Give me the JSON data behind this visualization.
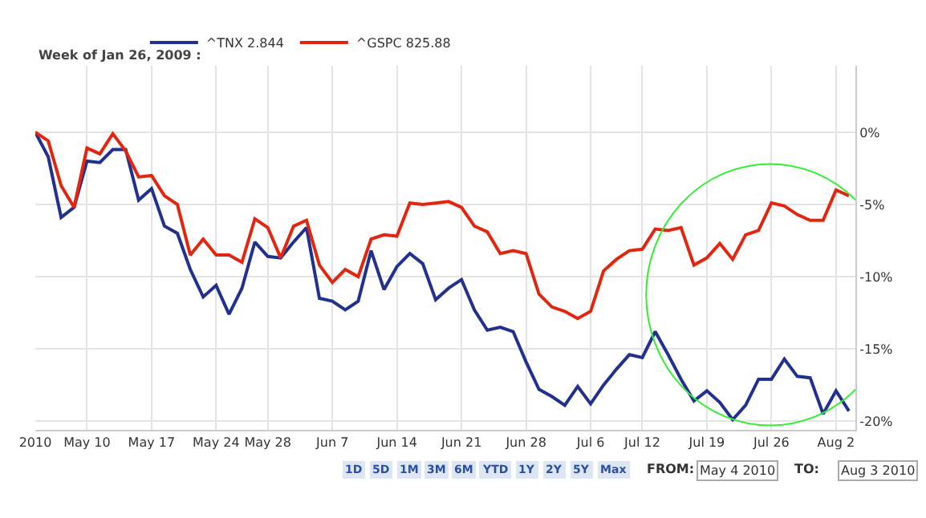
{
  "chart_data": {
    "type": "line",
    "categories": [
      "2010",
      null,
      null,
      null,
      "May 10",
      null,
      null,
      null,
      null,
      "May 17",
      null,
      null,
      null,
      null,
      "May 24",
      null,
      null,
      null,
      "May 28",
      null,
      null,
      null,
      null,
      "Jun 7",
      null,
      null,
      null,
      null,
      "Jun 14",
      null,
      null,
      null,
      null,
      "Jun 21",
      null,
      null,
      null,
      null,
      "Jun 28",
      null,
      null,
      null,
      null,
      "Jul 6",
      null,
      null,
      null,
      "Jul 12",
      null,
      null,
      null,
      null,
      "Jul 19",
      null,
      null,
      null,
      null,
      "Jul 26",
      null,
      null,
      null,
      null,
      "Aug 2",
      null
    ],
    "series": [
      {
        "name": "^TNX 2.844",
        "color": "#22318f",
        "values": [
          0,
          -1.7,
          -5.9,
          -5.2,
          -2.0,
          -2.1,
          -1.2,
          -1.2,
          -4.7,
          -3.9,
          -6.5,
          -7.0,
          -9.5,
          -11.4,
          -10.6,
          -12.6,
          -10.8,
          -7.6,
          -8.6,
          -8.7,
          -7.6,
          -6.6,
          -11.5,
          -11.7,
          -12.3,
          -11.7,
          -8.2,
          -10.9,
          -9.3,
          -8.4,
          -9.1,
          -11.6,
          -10.8,
          -10.2,
          -12.3,
          -13.7,
          -13.5,
          -13.8,
          -15.9,
          -17.8,
          -18.3,
          -18.9,
          -17.6,
          -18.8,
          -17.5,
          -16.4,
          -15.4,
          -15.6,
          -13.8,
          -15.4,
          -17.1,
          -18.6,
          -17.9,
          -18.7,
          -19.9,
          -18.9,
          -17.1,
          -17.1,
          -15.7,
          -16.9,
          -17.0,
          -19.5,
          -17.9,
          -19.3
        ]
      },
      {
        "name": "^GSPC 825.88",
        "color": "#e3260f",
        "values": [
          0,
          -0.6,
          -3.7,
          -5.2,
          -1.1,
          -1.5,
          -0.1,
          -1.3,
          -3.1,
          -3.0,
          -4.4,
          -5.0,
          -8.5,
          -7.4,
          -8.5,
          -8.5,
          -9.0,
          -6.0,
          -6.6,
          -8.7,
          -6.5,
          -6.1,
          -9.2,
          -10.4,
          -9.5,
          -10.0,
          -7.4,
          -7.1,
          -7.2,
          -4.9,
          -5.0,
          -4.9,
          -4.8,
          -5.2,
          -6.5,
          -6.9,
          -8.4,
          -8.2,
          -8.4,
          -11.2,
          -12.1,
          -12.4,
          -12.9,
          -12.4,
          -9.6,
          -8.8,
          -8.2,
          -8.1,
          -6.7,
          -6.8,
          -6.6,
          -9.2,
          -8.7,
          -7.7,
          -8.8,
          -7.1,
          -6.8,
          -4.9,
          -5.1,
          -5.7,
          -6.1,
          -6.1,
          -4.0,
          -4.4
        ]
      }
    ],
    "ylim": [
      -20.6,
      4.6
    ],
    "yticks": [
      {
        "value": 0,
        "label": "0%"
      },
      {
        "value": -5,
        "label": "-5%"
      },
      {
        "value": -10,
        "label": "-10%"
      },
      {
        "value": -15,
        "label": "-15%"
      },
      {
        "value": -20,
        "label": "-20%"
      }
    ],
    "grid": true,
    "legend": "top left",
    "marker": "none",
    "line_style": "solid",
    "annotations": [
      "Week of Jan 26, 2009 :",
      "1D",
      "5D",
      "1M",
      "3M",
      "6M",
      "YTD",
      "1Y",
      "2Y",
      "5Y",
      "Max",
      "FROM:",
      "May 4 2010",
      "TO:",
      "Aug 3 2010"
    ]
  }
}
